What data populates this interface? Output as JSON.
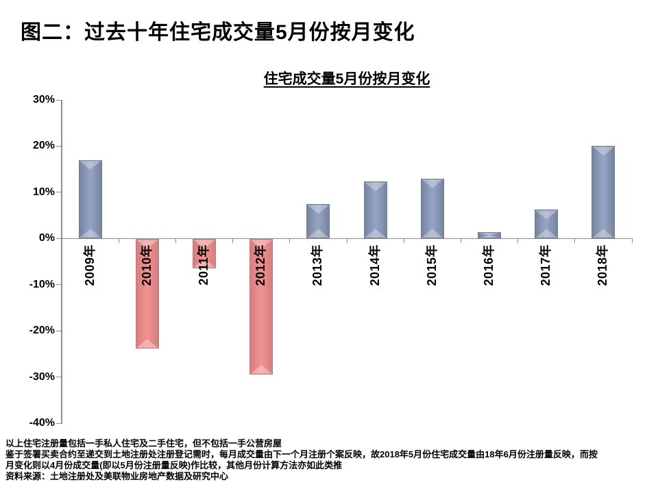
{
  "page": {
    "title": "图二：过去十年住宅成交量5月份按月变化"
  },
  "chart_data": {
    "type": "bar",
    "title": "住宅成交量5月份按月变化",
    "categories": [
      "2009年",
      "2010年",
      "2011年",
      "2012年",
      "2013年",
      "2014年",
      "2015年",
      "2016年",
      "2017年",
      "2018年"
    ],
    "values": [
      17.0,
      -23.7,
      -6.3,
      -29.3,
      7.4,
      12.3,
      13.0,
      1.4,
      6.2,
      20.0
    ],
    "unit": "%",
    "xlabel": "",
    "ylabel": "",
    "ylim": [
      -40,
      30
    ],
    "ytick_step": 10,
    "yticks": [
      30,
      20,
      10,
      0,
      -10,
      -20,
      -30,
      -40
    ],
    "ytick_labels": [
      "30%",
      "20%",
      "10%",
      "0%",
      "-10%",
      "-20%",
      "-30%",
      "-40%"
    ],
    "grid": false,
    "legend": null,
    "x_labels_rotated_degrees": -90,
    "positive_color": {
      "center": "#93A2C2",
      "edge": "#76849F",
      "border": "#6F7D99"
    },
    "negative_color": {
      "center": "#F0908F",
      "edge": "#D37F7F",
      "border": "#C97775"
    },
    "axis_color": "#8C8C8C",
    "text_color": "#000000"
  },
  "footnotes": {
    "lines": [
      "以上住宅注册量包括一手私人住宅及二手住宅，但不包括一手公营房屋",
      "鉴于签署买卖合约至递交到土地注册处注册登记需时，每月成交量由下一个月注册个案反映，故2018年5月份住宅成交量由18年6月份注册量反映，而按",
      "月变化则以4月份成交量(即以5月份注册量反映)作比较，其他月份计算方法亦如此类推",
      "资料来源：土地注册处及美联物业房地产数据及研究中心"
    ]
  }
}
